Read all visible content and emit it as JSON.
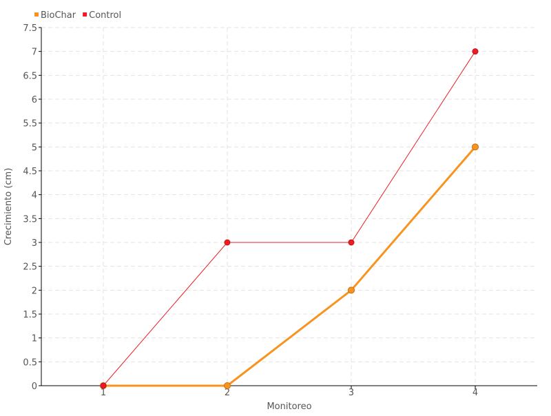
{
  "chart_data": {
    "type": "line",
    "xlabel": "Monitoreo",
    "ylabel": "Crecimiento (cm)",
    "categories": [
      "1",
      "2",
      "3",
      "4"
    ],
    "x": [
      1,
      2,
      3,
      4
    ],
    "xlim": [
      0.5,
      4.5
    ],
    "ylim": [
      0,
      7.5
    ],
    "yticks": [
      "0",
      "0.5",
      "1",
      "1.5",
      "2",
      "2.5",
      "3",
      "3.5",
      "4",
      "4.5",
      "5",
      "5.5",
      "6",
      "6.5",
      "7",
      "7.5"
    ],
    "grid": true,
    "legend_position": "top-left",
    "series": [
      {
        "name": "BioChar",
        "color": "#f7931e",
        "values": [
          0,
          0,
          2,
          5
        ]
      },
      {
        "name": "Control",
        "color": "#ed1c24",
        "values": [
          0,
          3,
          3,
          7
        ]
      }
    ]
  }
}
